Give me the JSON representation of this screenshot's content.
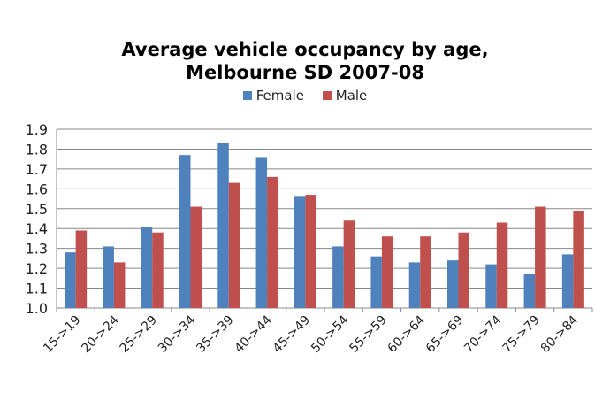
{
  "chart_data": {
    "type": "bar",
    "title": "Average vehicle occupancy by age,",
    "subtitle": "Melbourne SD 2007-08",
    "xlabel": "",
    "ylabel": "",
    "ylim": [
      1.0,
      1.9
    ],
    "yticks": [
      "1.0",
      "1.1",
      "1.2",
      "1.3",
      "1.4",
      "1.5",
      "1.6",
      "1.7",
      "1.8",
      "1.9"
    ],
    "grid": true,
    "legend_position": "top",
    "categories": [
      "15->19",
      "20->24",
      "25->29",
      "30->34",
      "35->39",
      "40->44",
      "45->49",
      "50->54",
      "55->59",
      "60->64",
      "65->69",
      "70->74",
      "75->79",
      "80->84"
    ],
    "series": [
      {
        "name": "Female",
        "color": "#4f81bd",
        "values": [
          1.28,
          1.31,
          1.41,
          1.77,
          1.83,
          1.76,
          1.56,
          1.31,
          1.26,
          1.23,
          1.24,
          1.22,
          1.17,
          1.27
        ]
      },
      {
        "name": "Male",
        "color": "#c0504d",
        "values": [
          1.39,
          1.23,
          1.38,
          1.51,
          1.63,
          1.66,
          1.57,
          1.44,
          1.36,
          1.36,
          1.38,
          1.43,
          1.51,
          1.49
        ]
      }
    ]
  }
}
